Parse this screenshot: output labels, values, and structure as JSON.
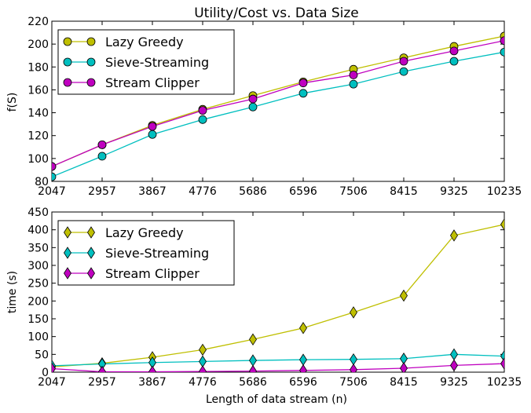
{
  "chart_data": [
    {
      "type": "line",
      "title": "Utility/Cost vs. Data Size",
      "xlabel": "",
      "ylabel": "f(S)",
      "ylim": [
        80,
        220
      ],
      "yticks": [
        80,
        100,
        120,
        140,
        160,
        180,
        200,
        220
      ],
      "categories": [
        "2047",
        "2957",
        "3867",
        "4776",
        "5686",
        "6596",
        "7506",
        "8415",
        "9325",
        "10235"
      ],
      "x": [
        2047,
        2957,
        3867,
        4776,
        5686,
        6596,
        7506,
        8415,
        9325,
        10235
      ],
      "legend": "top-left",
      "marker": "circle",
      "series": [
        {
          "name": "Lazy Greedy",
          "color": "#bfbf00",
          "values": [
            93,
            112,
            129,
            143,
            155,
            167,
            178,
            188,
            198,
            207
          ]
        },
        {
          "name": "Sieve-Streaming",
          "color": "#00bfbf",
          "values": [
            84,
            102,
            121,
            134,
            145,
            157,
            165,
            176,
            185,
            193
          ]
        },
        {
          "name": "Stream Clipper",
          "color": "#bf00bf",
          "values": [
            93,
            112,
            128,
            142,
            152,
            166,
            173,
            185,
            194,
            203
          ]
        }
      ]
    },
    {
      "type": "line",
      "title": "",
      "xlabel": "Length of data stream (n)",
      "ylabel": "time (s)",
      "ylim": [
        0,
        450
      ],
      "yticks": [
        0,
        50,
        100,
        150,
        200,
        250,
        300,
        350,
        400,
        450
      ],
      "categories": [
        "2047",
        "2957",
        "3867",
        "4776",
        "5686",
        "6596",
        "7506",
        "8415",
        "9325",
        "10235"
      ],
      "x": [
        2047,
        2957,
        3867,
        4776,
        5686,
        6596,
        7506,
        8415,
        9325,
        10235
      ],
      "legend": "top-left",
      "marker": "diamond",
      "series": [
        {
          "name": "Lazy Greedy",
          "color": "#bfbf00",
          "values": [
            15,
            25,
            42,
            63,
            92,
            124,
            168,
            215,
            384,
            415
          ]
        },
        {
          "name": "Sieve-Streaming",
          "color": "#00bfbf",
          "values": [
            18,
            23,
            27,
            30,
            33,
            35,
            36,
            38,
            50,
            45
          ]
        },
        {
          "name": "Stream Clipper",
          "color": "#bf00bf",
          "values": [
            10,
            1,
            1,
            2,
            3,
            5,
            7,
            11,
            19,
            24
          ]
        }
      ]
    }
  ]
}
